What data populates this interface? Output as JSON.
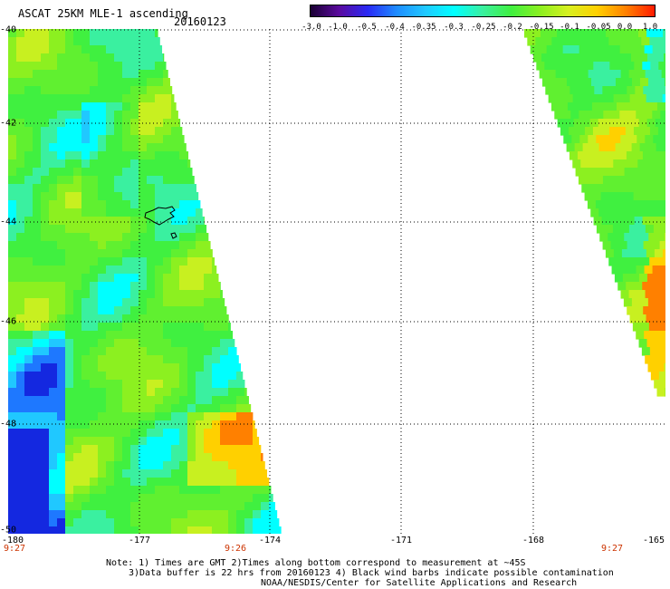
{
  "header": {
    "title": "ASCAT 25KM MLE-1 ascending",
    "date": "20160123"
  },
  "colorbar": {
    "labels": [
      "-3.0",
      "-1.0",
      "-0.5",
      "-0.4",
      "-0.35",
      "-0.3",
      "-0.25",
      "-0.2",
      "-0.15",
      "-0.1",
      "-0.05",
      "0.0",
      "1.0"
    ],
    "colors": [
      "#1a0033",
      "#5a0a9e",
      "#2a2af5",
      "#1e8cff",
      "#20c8ff",
      "#00ffff",
      "#3af0a0",
      "#40f040",
      "#8cf020",
      "#d8f020",
      "#ffd000",
      "#ff8000",
      "#ff1a00"
    ]
  },
  "map": {
    "lat_labels": [
      "-40",
      "-42",
      "-44",
      "-46",
      "-48",
      "-50"
    ],
    "lon_labels": [
      "-180",
      "-177",
      "-174",
      "-171",
      "-168",
      "-165"
    ],
    "time_labels": [
      "9:27",
      "9:26",
      "9:27"
    ]
  },
  "footer": {
    "line1": "Note: 1) Times are GMT 2)Times along bottom correspond to measurement at ~45S",
    "line2": "3)Data buffer is 22 hrs from 20160123 4) Black wind barbs indicate possible contamination",
    "line3": "NOAA/NESDIS/Center for Satellite Applications and Research"
  }
}
